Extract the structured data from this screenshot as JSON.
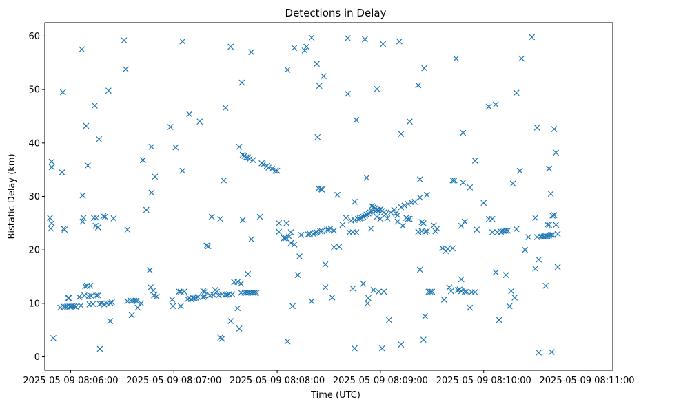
{
  "chart_data": {
    "type": "scatter",
    "title": "Detections in Delay",
    "xlabel": "Time (UTC)",
    "ylabel": "Bistatic Delay (km)",
    "xlim": [
      -15,
      315
    ],
    "ylim": [
      -2.5,
      62.5
    ],
    "grid": false,
    "marker": "x",
    "color": "#1f77b4",
    "x_ticks": [
      {
        "value": 0,
        "label": "2025-05-09 08:06:00"
      },
      {
        "value": 60,
        "label": "2025-05-09 08:07:00"
      },
      {
        "value": 120,
        "label": "2025-05-09 08:08:00"
      },
      {
        "value": 180,
        "label": "2025-05-09 08:09:00"
      },
      {
        "value": 240,
        "label": "2025-05-09 08:10:00"
      },
      {
        "value": 300,
        "label": "2025-05-09 08:11:00"
      }
    ],
    "y_ticks": [
      {
        "value": 0,
        "label": "0"
      },
      {
        "value": 10,
        "label": "10"
      },
      {
        "value": 20,
        "label": "20"
      },
      {
        "value": 30,
        "label": "30"
      },
      {
        "value": 40,
        "label": "40"
      },
      {
        "value": 50,
        "label": "50"
      },
      {
        "value": 60,
        "label": "60"
      }
    ],
    "x_unit": "seconds after 2025-05-09 08:06:00 UTC",
    "points": [
      [
        -12,
        26
      ],
      [
        -11.5,
        24
      ],
      [
        -11,
        36.5
      ],
      [
        -11,
        35.5
      ],
      [
        -11,
        25
      ],
      [
        -10,
        3.5
      ],
      [
        -6,
        9.2
      ],
      [
        -5,
        34.5
      ],
      [
        -4.5,
        49.5
      ],
      [
        -4,
        24
      ],
      [
        -4,
        9.4
      ],
      [
        -3.5,
        23.8
      ],
      [
        -3,
        9.4
      ],
      [
        -2,
        9.4
      ],
      [
        -1.5,
        11
      ],
      [
        -1,
        11
      ],
      [
        -0.5,
        9.4
      ],
      [
        0,
        9.4
      ],
      [
        1,
        9.5
      ],
      [
        2,
        9.5
      ],
      [
        3,
        9.4
      ],
      [
        5,
        11.2
      ],
      [
        6,
        9.6
      ],
      [
        6.5,
        57.5
      ],
      [
        7,
        30.2
      ],
      [
        7,
        25.3
      ],
      [
        7.5,
        26
      ],
      [
        8,
        11.5
      ],
      [
        8.5,
        13.2
      ],
      [
        9,
        43.2
      ],
      [
        9.5,
        13.3
      ],
      [
        10,
        35.8
      ],
      [
        10.5,
        11.3
      ],
      [
        11,
        9.8
      ],
      [
        11.5,
        13.3
      ],
      [
        12,
        11.4
      ],
      [
        13,
        9.9
      ],
      [
        13.5,
        26
      ],
      [
        14,
        47
      ],
      [
        14.5,
        24.5
      ],
      [
        15,
        11.5
      ],
      [
        15,
        26
      ],
      [
        16,
        11.5
      ],
      [
        16,
        24.2
      ],
      [
        16.5,
        40.7
      ],
      [
        17,
        9.9
      ],
      [
        17,
        1.5
      ],
      [
        18,
        10
      ],
      [
        19,
        26.3
      ],
      [
        19.5,
        9.8
      ],
      [
        20,
        26.2
      ],
      [
        21,
        10
      ],
      [
        22,
        49.8
      ],
      [
        23,
        6.7
      ],
      [
        23,
        10.1
      ],
      [
        24,
        10.2
      ],
      [
        25,
        25.9
      ],
      [
        31,
        59.2
      ],
      [
        32,
        53.8
      ],
      [
        33,
        10.4
      ],
      [
        33,
        23.8
      ],
      [
        35,
        10.5
      ],
      [
        35.5,
        7.8
      ],
      [
        36,
        10.5
      ],
      [
        37,
        10.5
      ],
      [
        38,
        10.5
      ],
      [
        38.5,
        10.4
      ],
      [
        39,
        9.2
      ],
      [
        41,
        10
      ],
      [
        42,
        36.8
      ],
      [
        44,
        27.5
      ],
      [
        46,
        16.2
      ],
      [
        46.5,
        13
      ],
      [
        47,
        30.7
      ],
      [
        47,
        39.3
      ],
      [
        48,
        12.4
      ],
      [
        48.5,
        11.5
      ],
      [
        49,
        33.7
      ],
      [
        50,
        11.3
      ],
      [
        58,
        43
      ],
      [
        59,
        10.7
      ],
      [
        59.5,
        9.5
      ],
      [
        61,
        39.2
      ],
      [
        63,
        12.2
      ],
      [
        64,
        9.5
      ],
      [
        64,
        12.2
      ],
      [
        65,
        59
      ],
      [
        65,
        34.8
      ],
      [
        66,
        12.2
      ],
      [
        68,
        10.8
      ],
      [
        69,
        45.4
      ],
      [
        69,
        11
      ],
      [
        70,
        10.8
      ],
      [
        71,
        11
      ],
      [
        72,
        11
      ],
      [
        73,
        11
      ],
      [
        74,
        11.2
      ],
      [
        75,
        44
      ],
      [
        77,
        12.3
      ],
      [
        77,
        11.2
      ],
      [
        78,
        12.2
      ],
      [
        78,
        11.3
      ],
      [
        79,
        20.8
      ],
      [
        80,
        20.7
      ],
      [
        81,
        11.5
      ],
      [
        82,
        26.2
      ],
      [
        83,
        11.6
      ],
      [
        84,
        12.5
      ],
      [
        85,
        12.2
      ],
      [
        86,
        11.5
      ],
      [
        87,
        25.8
      ],
      [
        87,
        3.6
      ],
      [
        88,
        3.4
      ],
      [
        88,
        11.7
      ],
      [
        89,
        33
      ],
      [
        90,
        11.6
      ],
      [
        90,
        46.6
      ],
      [
        91,
        11.6
      ],
      [
        92,
        11.7
      ],
      [
        93,
        58
      ],
      [
        93,
        6.7
      ],
      [
        94,
        11.7
      ],
      [
        95,
        14
      ],
      [
        97,
        14
      ],
      [
        97,
        9.1
      ],
      [
        98,
        5.3
      ],
      [
        98,
        39.3
      ],
      [
        99,
        13.7
      ],
      [
        99,
        12
      ],
      [
        99.5,
        51.3
      ],
      [
        100,
        25.6
      ],
      [
        100,
        37.8
      ],
      [
        101,
        37.6
      ],
      [
        101,
        12
      ],
      [
        102,
        37.3
      ],
      [
        102,
        12
      ],
      [
        103,
        37.3
      ],
      [
        103,
        15.5
      ],
      [
        103,
        12
      ],
      [
        104,
        37
      ],
      [
        104,
        12
      ],
      [
        105,
        57
      ],
      [
        105,
        22
      ],
      [
        105,
        12
      ],
      [
        106,
        36.8
      ],
      [
        106,
        12
      ],
      [
        107,
        12
      ],
      [
        108,
        12
      ],
      [
        110,
        26.2
      ],
      [
        111,
        36.2
      ],
      [
        112,
        36
      ],
      [
        114,
        35.7
      ],
      [
        115,
        35.4
      ],
      [
        117,
        35.2
      ],
      [
        119,
        34.8
      ],
      [
        120,
        34.8
      ],
      [
        121,
        23.4
      ],
      [
        121,
        25
      ],
      [
        124,
        22.2
      ],
      [
        125,
        22.2
      ],
      [
        125.5,
        25
      ],
      [
        126,
        53.7
      ],
      [
        126,
        2.9
      ],
      [
        127,
        22.5
      ],
      [
        128,
        23.3
      ],
      [
        128,
        21.3
      ],
      [
        129,
        9.5
      ],
      [
        130,
        57.8
      ],
      [
        130,
        21
      ],
      [
        132,
        15.3
      ],
      [
        133,
        18.8
      ],
      [
        134,
        22.8
      ],
      [
        136,
        57.3
      ],
      [
        137,
        58
      ],
      [
        138,
        22.9
      ],
      [
        139,
        23
      ],
      [
        140,
        59.7
      ],
      [
        140,
        10.4
      ],
      [
        141,
        23
      ],
      [
        142,
        23.2
      ],
      [
        143,
        23.3
      ],
      [
        143,
        54.8
      ],
      [
        143.5,
        41.1
      ],
      [
        144,
        31.5
      ],
      [
        144.5,
        50.7
      ],
      [
        145,
        23.5
      ],
      [
        145.5,
        31.4
      ],
      [
        146,
        31.3
      ],
      [
        146,
        23.5
      ],
      [
        147,
        52.5
      ],
      [
        148,
        17.3
      ],
      [
        148,
        13
      ],
      [
        149,
        23.8
      ],
      [
        150,
        23.8
      ],
      [
        151,
        24
      ],
      [
        152,
        11.1
      ],
      [
        153,
        23.6
      ],
      [
        153,
        20.5
      ],
      [
        155,
        30.3
      ],
      [
        156,
        20.6
      ],
      [
        158,
        24.7
      ],
      [
        160,
        26
      ],
      [
        161,
        59.6
      ],
      [
        161,
        49.2
      ],
      [
        162,
        23.3
      ],
      [
        163,
        25.5
      ],
      [
        164,
        23.3
      ],
      [
        164,
        12.8
      ],
      [
        165,
        25.6
      ],
      [
        165,
        1.6
      ],
      [
        165,
        29
      ],
      [
        166,
        23.3
      ],
      [
        166,
        44.3
      ],
      [
        167,
        25.8
      ],
      [
        168,
        25.9
      ],
      [
        169,
        26
      ],
      [
        170,
        13.7
      ],
      [
        170,
        26.2
      ],
      [
        171,
        59.4
      ],
      [
        171,
        26.4
      ],
      [
        172,
        26.6
      ],
      [
        172,
        33.5
      ],
      [
        172.5,
        10
      ],
      [
        173,
        11
      ],
      [
        173,
        26.8
      ],
      [
        174,
        27
      ],
      [
        174.5,
        24
      ],
      [
        175,
        27.2
      ],
      [
        175,
        28.2
      ],
      [
        176,
        28
      ],
      [
        176,
        12.5
      ],
      [
        177,
        27.8
      ],
      [
        177,
        27.3
      ],
      [
        178,
        27.5
      ],
      [
        178,
        26.2
      ],
      [
        178,
        50.1
      ],
      [
        179,
        27.4
      ],
      [
        179,
        12.2
      ],
      [
        180,
        25.8
      ],
      [
        180,
        27.6
      ],
      [
        181,
        27.3
      ],
      [
        181,
        1.6
      ],
      [
        181.5,
        58.5
      ],
      [
        182,
        27
      ],
      [
        182,
        12.2
      ],
      [
        183,
        26.7
      ],
      [
        184,
        25.9
      ],
      [
        185,
        6.9
      ],
      [
        186,
        27
      ],
      [
        188,
        27.5
      ],
      [
        189,
        26.8
      ],
      [
        190,
        26.5
      ],
      [
        190,
        25.3
      ],
      [
        191,
        59
      ],
      [
        192,
        2.3
      ],
      [
        192,
        41.7
      ],
      [
        192,
        28
      ],
      [
        193,
        24.5
      ],
      [
        194,
        28.3
      ],
      [
        195,
        26
      ],
      [
        196,
        25.8
      ],
      [
        196,
        28.6
      ],
      [
        197,
        44
      ],
      [
        197,
        25.8
      ],
      [
        198,
        28.9
      ],
      [
        200,
        29
      ],
      [
        202,
        50.8
      ],
      [
        202,
        23.4
      ],
      [
        203,
        16.3
      ],
      [
        203,
        33.2
      ],
      [
        203,
        29.8
      ],
      [
        204,
        23.5
      ],
      [
        204,
        25.2
      ],
      [
        205,
        3.2
      ],
      [
        205,
        25
      ],
      [
        205.5,
        54
      ],
      [
        206,
        7.6
      ],
      [
        206,
        23.4
      ],
      [
        207,
        23.5
      ],
      [
        207,
        30.3
      ],
      [
        208,
        12.2
      ],
      [
        209,
        12.2
      ],
      [
        210,
        12.2
      ],
      [
        211,
        24.6
      ],
      [
        212,
        23.5
      ],
      [
        213,
        24
      ],
      [
        216,
        20.3
      ],
      [
        217,
        10.7
      ],
      [
        218,
        19.8
      ],
      [
        219,
        20.2
      ],
      [
        220,
        13
      ],
      [
        221,
        12.3
      ],
      [
        222,
        20.3
      ],
      [
        222,
        33
      ],
      [
        223,
        33
      ],
      [
        224,
        55.8
      ],
      [
        225,
        12.5
      ],
      [
        226,
        12.6
      ],
      [
        227,
        24.5
      ],
      [
        227,
        12.3
      ],
      [
        227,
        14.5
      ],
      [
        228,
        32.6
      ],
      [
        228,
        41.9
      ],
      [
        229,
        12.2
      ],
      [
        229,
        25.3
      ],
      [
        230,
        12.2
      ],
      [
        232,
        31.7
      ],
      [
        232,
        9.2
      ],
      [
        233,
        12.1
      ],
      [
        235,
        36.7
      ],
      [
        235,
        12.1
      ],
      [
        236,
        23.8
      ],
      [
        240,
        28.8
      ],
      [
        243,
        25.8
      ],
      [
        243,
        46.8
      ],
      [
        245,
        23.3
      ],
      [
        245,
        25.8
      ],
      [
        247,
        47.2
      ],
      [
        247,
        15.8
      ],
      [
        248,
        23.3
      ],
      [
        249,
        6.9
      ],
      [
        250,
        23.4
      ],
      [
        251,
        23.5
      ],
      [
        252,
        23.5
      ],
      [
        253,
        15.3
      ],
      [
        253,
        23.6
      ],
      [
        254,
        23.6
      ],
      [
        255,
        9.5
      ],
      [
        256,
        12.3
      ],
      [
        257,
        32.4
      ],
      [
        258,
        11.1
      ],
      [
        259,
        23.9
      ],
      [
        259,
        49.4
      ],
      [
        261,
        34.8
      ],
      [
        262,
        55.8
      ],
      [
        264,
        20
      ],
      [
        266,
        22.4
      ],
      [
        268,
        59.8
      ],
      [
        270,
        26
      ],
      [
        270,
        16.5
      ],
      [
        271,
        42.9
      ],
      [
        271,
        22.4
      ],
      [
        272,
        0.8
      ],
      [
        272,
        18.2
      ],
      [
        273,
        22.5
      ],
      [
        274,
        22.5
      ],
      [
        275,
        22.5
      ],
      [
        276,
        22.6
      ],
      [
        276,
        13.3
      ],
      [
        277,
        24.7
      ],
      [
        277,
        22.6
      ],
      [
        278,
        35.2
      ],
      [
        278,
        24.7
      ],
      [
        278,
        22.7
      ],
      [
        279,
        30.5
      ],
      [
        279,
        22.8
      ],
      [
        279.5,
        0.9
      ],
      [
        280,
        22.8
      ],
      [
        280,
        26.4
      ],
      [
        281,
        42.6
      ],
      [
        281,
        26.5
      ],
      [
        282,
        24.7
      ],
      [
        282,
        38.2
      ],
      [
        283,
        23
      ],
      [
        283,
        16.8
      ]
    ]
  }
}
